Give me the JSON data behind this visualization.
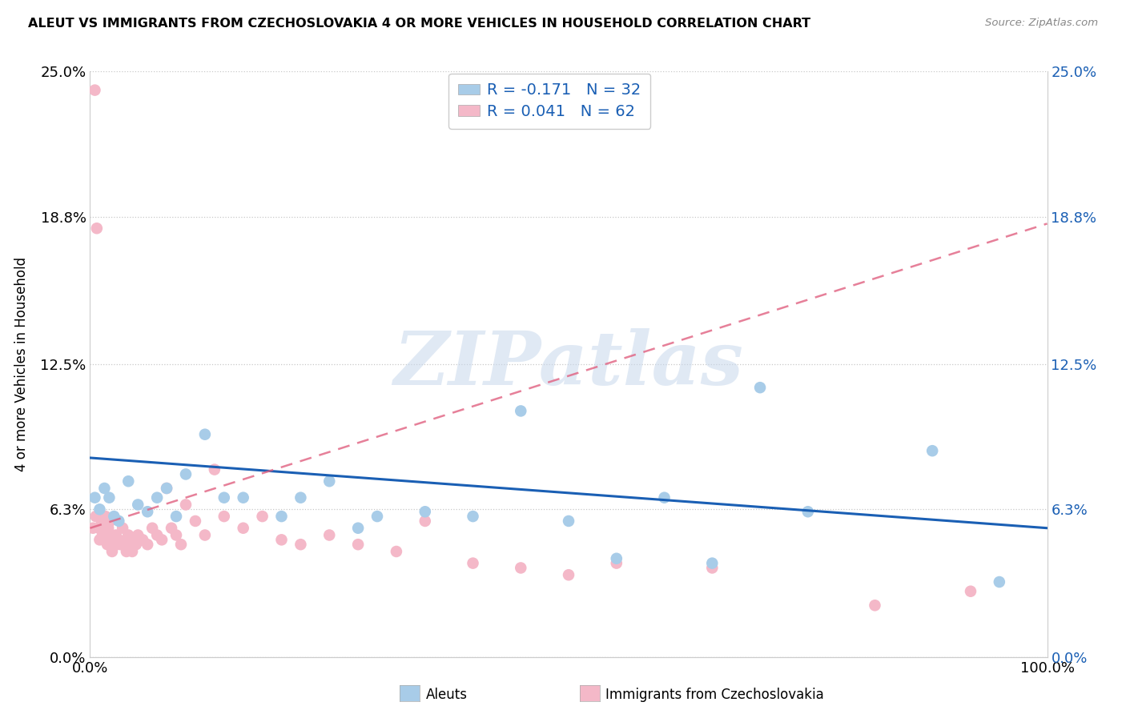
{
  "title": "ALEUT VS IMMIGRANTS FROM CZECHOSLOVAKIA 4 OR MORE VEHICLES IN HOUSEHOLD CORRELATION CHART",
  "source": "Source: ZipAtlas.com",
  "ylabel": "4 or more Vehicles in Household",
  "xlim": [
    0.0,
    1.0
  ],
  "ylim": [
    0.0,
    0.25
  ],
  "ytick_vals": [
    0.0,
    0.063,
    0.125,
    0.188,
    0.25
  ],
  "ytick_labels_left": [
    "0.0%",
    "6.3%",
    "12.5%",
    "18.8%",
    "25.0%"
  ],
  "ytick_labels_right": [
    "0.0%",
    "6.3%",
    "12.5%",
    "18.8%",
    "25.0%"
  ],
  "xtick_vals": [
    0.0,
    1.0
  ],
  "xtick_labels": [
    "0.0%",
    "100.0%"
  ],
  "legend_r1": "R = -0.171",
  "legend_n1": "N = 32",
  "legend_r2": "R = 0.041",
  "legend_n2": "N = 62",
  "aleuts_scatter_color": "#a8cce8",
  "aleuts_line_color": "#1a5fb4",
  "immigrants_scatter_color": "#f4b8c8",
  "immigrants_line_color": "#e06080",
  "watermark_text": "ZIPatlas",
  "bottom_label_aleuts": "Aleuts",
  "bottom_label_immigrants": "Immigrants from Czechoslovakia",
  "aleuts_x": [
    0.005,
    0.01,
    0.015,
    0.02,
    0.025,
    0.03,
    0.04,
    0.05,
    0.06,
    0.07,
    0.08,
    0.09,
    0.1,
    0.12,
    0.14,
    0.16,
    0.2,
    0.22,
    0.25,
    0.28,
    0.3,
    0.35,
    0.4,
    0.45,
    0.5,
    0.55,
    0.6,
    0.65,
    0.7,
    0.75,
    0.88,
    0.95
  ],
  "aleuts_y": [
    0.068,
    0.063,
    0.072,
    0.068,
    0.06,
    0.058,
    0.075,
    0.065,
    0.062,
    0.068,
    0.072,
    0.06,
    0.078,
    0.095,
    0.068,
    0.068,
    0.06,
    0.068,
    0.075,
    0.055,
    0.06,
    0.062,
    0.06,
    0.105,
    0.058,
    0.042,
    0.068,
    0.04,
    0.115,
    0.062,
    0.088,
    0.032
  ],
  "immigrants_x": [
    0.003,
    0.005,
    0.006,
    0.007,
    0.008,
    0.009,
    0.01,
    0.011,
    0.012,
    0.013,
    0.015,
    0.016,
    0.017,
    0.018,
    0.019,
    0.02,
    0.021,
    0.022,
    0.023,
    0.025,
    0.027,
    0.028,
    0.03,
    0.032,
    0.034,
    0.036,
    0.038,
    0.04,
    0.042,
    0.044,
    0.046,
    0.048,
    0.05,
    0.055,
    0.06,
    0.065,
    0.07,
    0.075,
    0.08,
    0.085,
    0.09,
    0.095,
    0.1,
    0.11,
    0.12,
    0.13,
    0.14,
    0.16,
    0.18,
    0.2,
    0.22,
    0.25,
    0.28,
    0.32,
    0.35,
    0.4,
    0.45,
    0.5,
    0.55,
    0.65,
    0.82,
    0.92
  ],
  "immigrants_y": [
    0.055,
    0.242,
    0.06,
    0.183,
    0.06,
    0.055,
    0.05,
    0.055,
    0.058,
    0.052,
    0.05,
    0.06,
    0.052,
    0.048,
    0.055,
    0.052,
    0.058,
    0.048,
    0.045,
    0.05,
    0.052,
    0.048,
    0.05,
    0.048,
    0.055,
    0.048,
    0.045,
    0.052,
    0.048,
    0.045,
    0.05,
    0.048,
    0.052,
    0.05,
    0.048,
    0.055,
    0.052,
    0.05,
    0.072,
    0.055,
    0.052,
    0.048,
    0.065,
    0.058,
    0.052,
    0.08,
    0.06,
    0.055,
    0.06,
    0.05,
    0.048,
    0.052,
    0.048,
    0.045,
    0.058,
    0.04,
    0.038,
    0.035,
    0.04,
    0.038,
    0.022,
    0.028
  ]
}
